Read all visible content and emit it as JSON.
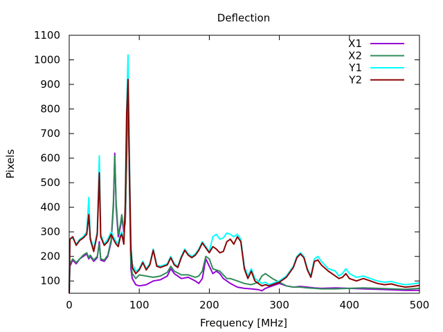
{
  "chart_data": {
    "type": "line",
    "title": "Deflection",
    "xlabel": "Frequency [MHz]",
    "ylabel": "Pixels",
    "xlim": [
      0,
      500
    ],
    "ylim": [
      50,
      1100
    ],
    "xticks": [
      0,
      100,
      200,
      300,
      400,
      500
    ],
    "yticks": [
      100,
      200,
      300,
      400,
      500,
      600,
      700,
      800,
      900,
      1000,
      1100
    ],
    "grid": false,
    "legend_position": "top-right",
    "series": [
      {
        "name": "X1",
        "color": "#9400d3",
        "points": [
          [
            0,
            50
          ],
          [
            1,
            160
          ],
          [
            5,
            185
          ],
          [
            10,
            170
          ],
          [
            15,
            190
          ],
          [
            20,
            200
          ],
          [
            25,
            210
          ],
          [
            28,
            190
          ],
          [
            30,
            200
          ],
          [
            35,
            180
          ],
          [
            40,
            195
          ],
          [
            43,
            260
          ],
          [
            45,
            185
          ],
          [
            50,
            180
          ],
          [
            55,
            200
          ],
          [
            60,
            260
          ],
          [
            63,
            400
          ],
          [
            65,
            620
          ],
          [
            67,
            400
          ],
          [
            70,
            280
          ],
          [
            73,
            320
          ],
          [
            75,
            360
          ],
          [
            78,
            300
          ],
          [
            80,
            340
          ],
          [
            82,
            600
          ],
          [
            84,
            920
          ],
          [
            86,
            500
          ],
          [
            88,
            150
          ],
          [
            90,
            110
          ],
          [
            95,
            85
          ],
          [
            100,
            80
          ],
          [
            110,
            85
          ],
          [
            120,
            100
          ],
          [
            130,
            105
          ],
          [
            140,
            120
          ],
          [
            145,
            150
          ],
          [
            150,
            130
          ],
          [
            160,
            110
          ],
          [
            170,
            115
          ],
          [
            180,
            100
          ],
          [
            185,
            90
          ],
          [
            190,
            110
          ],
          [
            195,
            190
          ],
          [
            200,
            160
          ],
          [
            205,
            130
          ],
          [
            210,
            140
          ],
          [
            215,
            130
          ],
          [
            220,
            110
          ],
          [
            225,
            100
          ],
          [
            230,
            90
          ],
          [
            240,
            75
          ],
          [
            250,
            70
          ],
          [
            260,
            68
          ],
          [
            270,
            65
          ],
          [
            275,
            60
          ],
          [
            280,
            70
          ],
          [
            290,
            80
          ],
          [
            300,
            90
          ],
          [
            310,
            80
          ],
          [
            320,
            75
          ],
          [
            330,
            78
          ],
          [
            340,
            75
          ],
          [
            350,
            72
          ],
          [
            360,
            70
          ],
          [
            380,
            72
          ],
          [
            400,
            70
          ],
          [
            420,
            68
          ],
          [
            440,
            66
          ],
          [
            460,
            64
          ],
          [
            480,
            62
          ],
          [
            500,
            62
          ]
        ]
      },
      {
        "name": "X2",
        "color": "#2e8b57",
        "points": [
          [
            0,
            50
          ],
          [
            1,
            170
          ],
          [
            5,
            190
          ],
          [
            10,
            175
          ],
          [
            15,
            190
          ],
          [
            20,
            205
          ],
          [
            25,
            215
          ],
          [
            28,
            195
          ],
          [
            30,
            205
          ],
          [
            35,
            185
          ],
          [
            40,
            200
          ],
          [
            43,
            250
          ],
          [
            45,
            190
          ],
          [
            50,
            185
          ],
          [
            55,
            205
          ],
          [
            60,
            270
          ],
          [
            63,
            420
          ],
          [
            65,
            610
          ],
          [
            67,
            420
          ],
          [
            70,
            290
          ],
          [
            73,
            330
          ],
          [
            75,
            370
          ],
          [
            78,
            310
          ],
          [
            80,
            350
          ],
          [
            82,
            580
          ],
          [
            84,
            900
          ],
          [
            86,
            510
          ],
          [
            88,
            170
          ],
          [
            90,
            130
          ],
          [
            95,
            110
          ],
          [
            100,
            125
          ],
          [
            110,
            120
          ],
          [
            120,
            115
          ],
          [
            130,
            120
          ],
          [
            140,
            135
          ],
          [
            145,
            160
          ],
          [
            150,
            140
          ],
          [
            160,
            125
          ],
          [
            170,
            125
          ],
          [
            180,
            115
          ],
          [
            185,
            120
          ],
          [
            190,
            140
          ],
          [
            195,
            200
          ],
          [
            200,
            190
          ],
          [
            205,
            150
          ],
          [
            210,
            145
          ],
          [
            215,
            140
          ],
          [
            220,
            125
          ],
          [
            225,
            110
          ],
          [
            230,
            110
          ],
          [
            240,
            100
          ],
          [
            250,
            90
          ],
          [
            260,
            85
          ],
          [
            270,
            95
          ],
          [
            275,
            120
          ],
          [
            280,
            130
          ],
          [
            290,
            110
          ],
          [
            300,
            95
          ],
          [
            310,
            80
          ],
          [
            320,
            75
          ],
          [
            330,
            75
          ],
          [
            340,
            72
          ],
          [
            350,
            70
          ],
          [
            360,
            68
          ],
          [
            380,
            68
          ],
          [
            400,
            70
          ],
          [
            420,
            72
          ],
          [
            440,
            70
          ],
          [
            460,
            68
          ],
          [
            480,
            66
          ],
          [
            500,
            70
          ]
        ]
      },
      {
        "name": "Y1",
        "color": "#00ffff",
        "points": [
          [
            0,
            50
          ],
          [
            1,
            270
          ],
          [
            5,
            275
          ],
          [
            10,
            250
          ],
          [
            15,
            270
          ],
          [
            20,
            280
          ],
          [
            25,
            300
          ],
          [
            28,
            440
          ],
          [
            30,
            280
          ],
          [
            35,
            230
          ],
          [
            40,
            300
          ],
          [
            43,
            610
          ],
          [
            45,
            290
          ],
          [
            50,
            250
          ],
          [
            55,
            270
          ],
          [
            60,
            300
          ],
          [
            63,
            280
          ],
          [
            65,
            270
          ],
          [
            67,
            260
          ],
          [
            70,
            250
          ],
          [
            73,
            290
          ],
          [
            75,
            300
          ],
          [
            78,
            260
          ],
          [
            80,
            420
          ],
          [
            82,
            800
          ],
          [
            84,
            1020
          ],
          [
            86,
            600
          ],
          [
            88,
            250
          ],
          [
            90,
            170
          ],
          [
            95,
            140
          ],
          [
            100,
            150
          ],
          [
            105,
            180
          ],
          [
            110,
            150
          ],
          [
            115,
            170
          ],
          [
            120,
            230
          ],
          [
            125,
            165
          ],
          [
            130,
            160
          ],
          [
            140,
            170
          ],
          [
            145,
            200
          ],
          [
            150,
            170
          ],
          [
            155,
            160
          ],
          [
            160,
            200
          ],
          [
            165,
            230
          ],
          [
            170,
            210
          ],
          [
            175,
            200
          ],
          [
            180,
            210
          ],
          [
            185,
            230
          ],
          [
            190,
            260
          ],
          [
            195,
            240
          ],
          [
            200,
            220
          ],
          [
            205,
            280
          ],
          [
            210,
            290
          ],
          [
            215,
            270
          ],
          [
            220,
            275
          ],
          [
            225,
            295
          ],
          [
            230,
            290
          ],
          [
            235,
            280
          ],
          [
            240,
            290
          ],
          [
            245,
            270
          ],
          [
            250,
            160
          ],
          [
            255,
            120
          ],
          [
            260,
            150
          ],
          [
            265,
            110
          ],
          [
            270,
            100
          ],
          [
            275,
            90
          ],
          [
            280,
            95
          ],
          [
            285,
            85
          ],
          [
            290,
            90
          ],
          [
            300,
            100
          ],
          [
            310,
            120
          ],
          [
            320,
            160
          ],
          [
            325,
            200
          ],
          [
            330,
            215
          ],
          [
            335,
            200
          ],
          [
            340,
            150
          ],
          [
            345,
            120
          ],
          [
            350,
            190
          ],
          [
            355,
            200
          ],
          [
            360,
            180
          ],
          [
            370,
            150
          ],
          [
            380,
            140
          ],
          [
            385,
            120
          ],
          [
            390,
            130
          ],
          [
            395,
            150
          ],
          [
            400,
            130
          ],
          [
            410,
            115
          ],
          [
            420,
            120
          ],
          [
            430,
            110
          ],
          [
            440,
            100
          ],
          [
            450,
            95
          ],
          [
            460,
            98
          ],
          [
            470,
            90
          ],
          [
            480,
            85
          ],
          [
            490,
            88
          ],
          [
            500,
            92
          ]
        ]
      },
      {
        "name": "Y2",
        "color": "#8b0000",
        "points": [
          [
            0,
            50
          ],
          [
            1,
            270
          ],
          [
            5,
            280
          ],
          [
            10,
            245
          ],
          [
            15,
            265
          ],
          [
            20,
            275
          ],
          [
            25,
            290
          ],
          [
            28,
            370
          ],
          [
            30,
            270
          ],
          [
            35,
            220
          ],
          [
            40,
            290
          ],
          [
            43,
            540
          ],
          [
            45,
            280
          ],
          [
            50,
            245
          ],
          [
            55,
            260
          ],
          [
            60,
            290
          ],
          [
            63,
            270
          ],
          [
            65,
            260
          ],
          [
            67,
            250
          ],
          [
            70,
            240
          ],
          [
            73,
            280
          ],
          [
            75,
            290
          ],
          [
            78,
            250
          ],
          [
            80,
            410
          ],
          [
            82,
            780
          ],
          [
            84,
            920
          ],
          [
            86,
            560
          ],
          [
            88,
            230
          ],
          [
            90,
            155
          ],
          [
            95,
            130
          ],
          [
            100,
            145
          ],
          [
            105,
            175
          ],
          [
            110,
            145
          ],
          [
            115,
            165
          ],
          [
            120,
            225
          ],
          [
            125,
            160
          ],
          [
            130,
            155
          ],
          [
            140,
            165
          ],
          [
            145,
            195
          ],
          [
            150,
            165
          ],
          [
            155,
            155
          ],
          [
            160,
            195
          ],
          [
            165,
            225
          ],
          [
            170,
            205
          ],
          [
            175,
            195
          ],
          [
            180,
            205
          ],
          [
            185,
            225
          ],
          [
            190,
            255
          ],
          [
            195,
            235
          ],
          [
            200,
            215
          ],
          [
            205,
            240
          ],
          [
            210,
            230
          ],
          [
            215,
            215
          ],
          [
            220,
            220
          ],
          [
            225,
            260
          ],
          [
            230,
            270
          ],
          [
            235,
            250
          ],
          [
            240,
            280
          ],
          [
            245,
            260
          ],
          [
            250,
            150
          ],
          [
            255,
            110
          ],
          [
            260,
            140
          ],
          [
            265,
            100
          ],
          [
            270,
            90
          ],
          [
            275,
            80
          ],
          [
            280,
            85
          ],
          [
            285,
            80
          ],
          [
            290,
            85
          ],
          [
            300,
            95
          ],
          [
            310,
            115
          ],
          [
            320,
            155
          ],
          [
            325,
            195
          ],
          [
            330,
            210
          ],
          [
            335,
            195
          ],
          [
            340,
            145
          ],
          [
            345,
            115
          ],
          [
            350,
            180
          ],
          [
            355,
            185
          ],
          [
            360,
            165
          ],
          [
            370,
            140
          ],
          [
            380,
            120
          ],
          [
            385,
            110
          ],
          [
            390,
            115
          ],
          [
            395,
            130
          ],
          [
            400,
            110
          ],
          [
            410,
            100
          ],
          [
            420,
            110
          ],
          [
            430,
            100
          ],
          [
            440,
            90
          ],
          [
            450,
            85
          ],
          [
            460,
            88
          ],
          [
            470,
            80
          ],
          [
            480,
            75
          ],
          [
            490,
            78
          ],
          [
            500,
            82
          ]
        ]
      }
    ]
  }
}
